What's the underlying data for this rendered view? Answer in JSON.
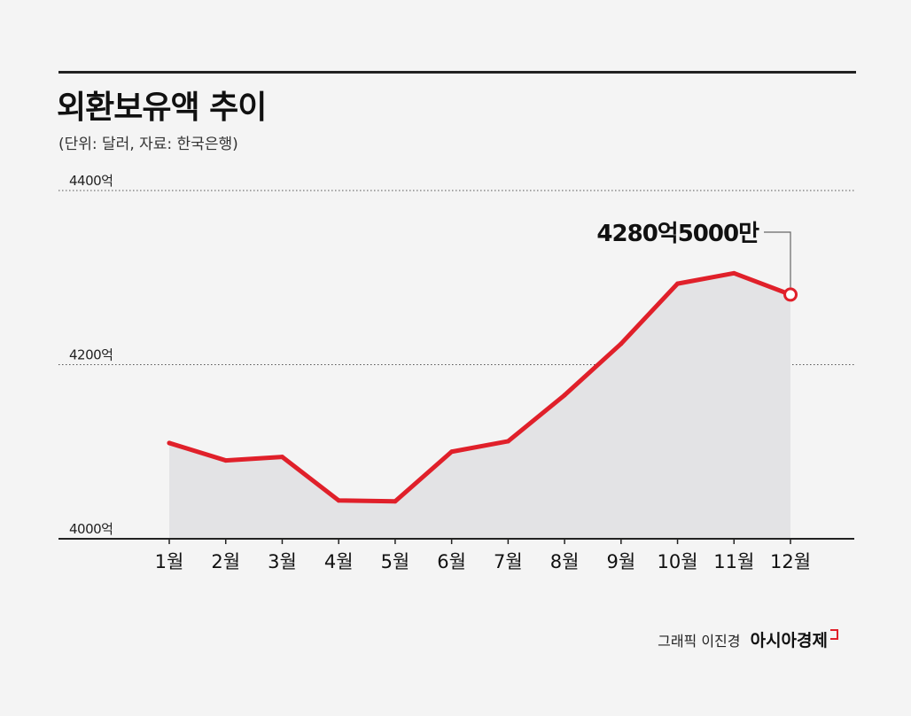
{
  "title": "외환보유액 추이",
  "subtitle": "(단위: 달러, 자료: 한국은행)",
  "credit": {
    "author": "그래픽 이진경",
    "brand": "아시아경제"
  },
  "colors": {
    "line": "#e0202a",
    "area": "#e3e3e5",
    "axis": "#222222",
    "grid": "#555555"
  },
  "chart_data": {
    "type": "area",
    "title": "외환보유액 추이",
    "xlabel": "",
    "ylabel": "",
    "unit": "억 달러",
    "categories": [
      "1월",
      "2월",
      "3월",
      "4월",
      "5월",
      "6월",
      "7월",
      "8월",
      "9월",
      "10월",
      "11월",
      "12월"
    ],
    "series": [
      {
        "name": "외환보유액",
        "values": [
          4110,
          4090,
          4094,
          4044,
          4043,
          4100,
          4112,
          4165,
          4224,
          4293,
          4305,
          4280.5
        ]
      }
    ],
    "ylim": [
      4000,
      4400
    ],
    "yticks": [
      {
        "value": 4000,
        "label": "4000억"
      },
      {
        "value": 4200,
        "label": "4200억"
      },
      {
        "value": 4400,
        "label": "4400억"
      }
    ],
    "annotation": {
      "index": 11,
      "label": "4280억5000만"
    },
    "grid": true
  }
}
